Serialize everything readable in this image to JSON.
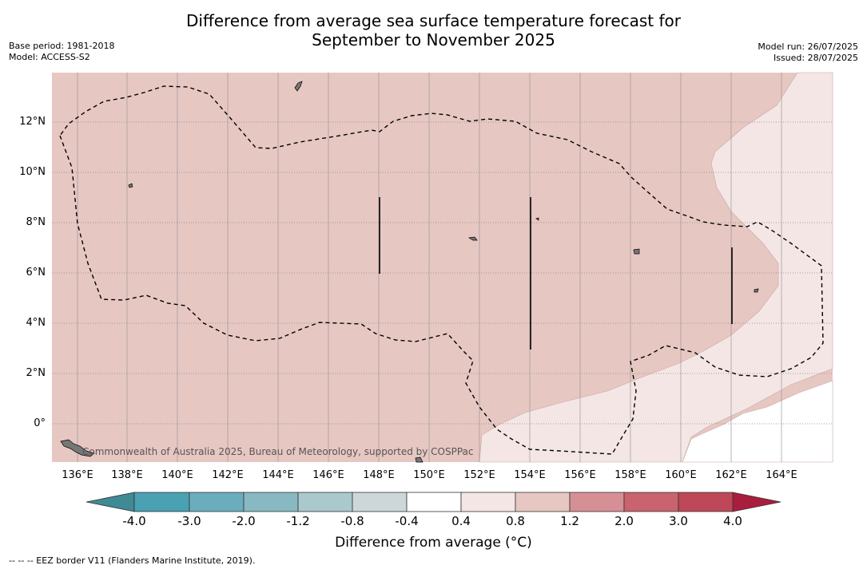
{
  "title_line1": "Difference from average sea surface temperature forecast for",
  "title_line2": "September to November 2025",
  "meta": {
    "base_period": "Base period: 1981-2018",
    "model": "Model: ACCESS-S2",
    "model_run": "Model run: 26/07/2025",
    "issued": "Issued: 28/07/2025"
  },
  "map": {
    "x_ticks": [
      "136°E",
      "138°E",
      "140°E",
      "142°E",
      "144°E",
      "146°E",
      "148°E",
      "150°E",
      "152°E",
      "154°E",
      "156°E",
      "158°E",
      "160°E",
      "162°E",
      "164°E"
    ],
    "y_ticks": [
      "12°N",
      "10°N",
      "8°N",
      "6°N",
      "4°N",
      "2°N",
      "0°"
    ],
    "attribution": "Commonwealth of Australia 2025, Bureau of Meteorology, supported by COSPPac",
    "colors": {
      "anomaly_0_8_to_1_2": "#e7c7c2",
      "anomaly_0_4_to_0_8": "#f4e6e4",
      "land": "#7a7a7a"
    }
  },
  "colorbar": {
    "label": "Difference from average (°C)",
    "ticks": [
      "-4.0",
      "-3.0",
      "-2.0",
      "-1.2",
      "-0.8",
      "-0.4",
      "0.4",
      "0.8",
      "1.2",
      "2.0",
      "3.0",
      "4.0"
    ],
    "colors": [
      "#3f8a94",
      "#49a1b2",
      "#6aaebe",
      "#88b9c3",
      "#a9c9cc",
      "#cdd7d9",
      "#ffffff",
      "#f4e6e4",
      "#e7c7c2",
      "#d78f96",
      "#c9636e",
      "#bf4858",
      "#a91e3d"
    ]
  },
  "footer": "-- -- -- EEZ border V11 (Flanders Marine Institute, 2019)."
}
